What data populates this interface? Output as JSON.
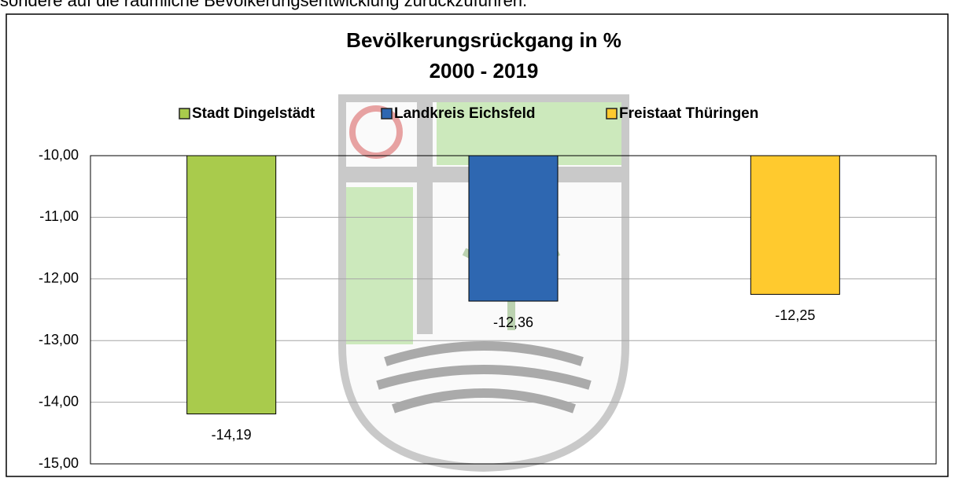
{
  "caption": "sondere auf die räumliche Bevölkerungsentwicklung zurückzuführen.",
  "chart_data": {
    "type": "bar",
    "title": [
      "Bevölkerungsrückgang in %",
      "2000 - 2019"
    ],
    "series": [
      {
        "name": "Stadt Dingelstädt",
        "color": "#a9cb4c",
        "values": [
          -14.19
        ],
        "value_labels": [
          "-14,19"
        ]
      },
      {
        "name": "Landkreis Eichsfeld",
        "color": "#2e67b1",
        "values": [
          -12.36
        ],
        "value_labels": [
          "-12,36"
        ]
      },
      {
        "name": "Freistaat Thüringen",
        "color": "#ffca2e",
        "values": [
          -12.25
        ],
        "value_labels": [
          "-12,25"
        ]
      }
    ],
    "ylim": [
      -15,
      -10
    ],
    "yticks": [
      {
        "value": -10,
        "label": "-10,00"
      },
      {
        "value": -11,
        "label": "-11,00"
      },
      {
        "value": -12,
        "label": "-12,00"
      },
      {
        "value": -13,
        "label": "-13,00"
      },
      {
        "value": -14,
        "label": "-14,00"
      },
      {
        "value": -15,
        "label": "-15,00"
      }
    ],
    "grid": true,
    "legend": "top"
  }
}
